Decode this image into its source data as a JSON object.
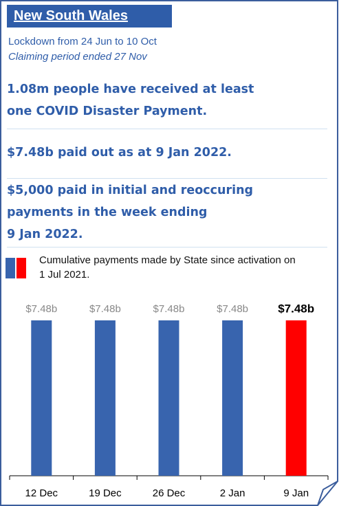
{
  "header": {
    "title": "New South Wales",
    "subtitle": "Lockdown from 24 Jun to 10 Oct",
    "note": "Claiming period ended 27 Nov"
  },
  "headlines": [
    [
      "1.08m people have received at least",
      "one COVID Disaster Payment."
    ],
    [
      "$7.48b paid out as at 9 Jan 2022."
    ],
    [
      "$5,000 paid in initial and reoccuring",
      "payments in the week ending",
      "9 Jan 2022."
    ]
  ],
  "legend": {
    "text": "Cumulative payments made by State since activation on 1 Jul 2021.",
    "colors": [
      "#3864ae",
      "#ff0000"
    ]
  },
  "chart_data": {
    "type": "bar",
    "categories": [
      "12 Dec",
      "19 Dec",
      "26 Dec",
      "2 Jan",
      "9 Jan"
    ],
    "values": [
      7.48,
      7.48,
      7.48,
      7.48,
      7.48
    ],
    "value_labels": [
      "$7.48b",
      "$7.48b",
      "$7.48b",
      "$7.48b",
      "$7.48b"
    ],
    "colors": [
      "#3864ae",
      "#3864ae",
      "#3864ae",
      "#3864ae",
      "#ff0000"
    ]
  }
}
